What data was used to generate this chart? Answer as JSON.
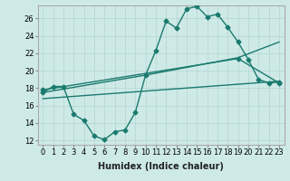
{
  "xlabel": "Humidex (Indice chaleur)",
  "ylabel": "",
  "background_color": "#ceeae7",
  "grid_color": "#b8d8d4",
  "line_color": "#1a7a6e",
  "xlim": [
    -0.5,
    23.5
  ],
  "ylim": [
    11.5,
    27.5
  ],
  "yticks": [
    12,
    14,
    16,
    18,
    20,
    22,
    24,
    26
  ],
  "xticks": [
    0,
    1,
    2,
    3,
    4,
    5,
    6,
    7,
    8,
    9,
    10,
    11,
    12,
    13,
    14,
    15,
    16,
    17,
    18,
    19,
    20,
    21,
    22,
    23
  ],
  "xtick_labels": [
    "0",
    "1",
    "2",
    "3",
    "4",
    "5",
    "6",
    "7",
    "8",
    "9",
    "10",
    "11",
    "12",
    "13",
    "14",
    "15",
    "16",
    "17",
    "18",
    "19",
    "20",
    "21",
    "22",
    "23"
  ],
  "line1_x": [
    0,
    1,
    2,
    3,
    4,
    5,
    6,
    7,
    8,
    9,
    10,
    11,
    12,
    13,
    14,
    15,
    16,
    17,
    18,
    19,
    20,
    21,
    22,
    23
  ],
  "line1_y": [
    17.5,
    18.2,
    18.2,
    15.0,
    14.3,
    12.5,
    12.1,
    13.0,
    13.2,
    15.2,
    19.5,
    22.3,
    25.7,
    24.9,
    27.1,
    27.4,
    26.2,
    26.5,
    25.0,
    23.3,
    21.3,
    19.0,
    18.6,
    18.7
  ],
  "line2_x": [
    0,
    10,
    19,
    23
  ],
  "line2_y": [
    17.5,
    19.5,
    21.5,
    23.3
  ],
  "line3_x": [
    0,
    19,
    23
  ],
  "line3_y": [
    17.8,
    21.4,
    18.6
  ],
  "line4_x": [
    0,
    23
  ],
  "line4_y": [
    16.8,
    18.8
  ],
  "marker": "D",
  "marker_size": 2.5,
  "linewidth": 1.0,
  "tick_fontsize": 6.0,
  "label_fontsize": 7.0
}
